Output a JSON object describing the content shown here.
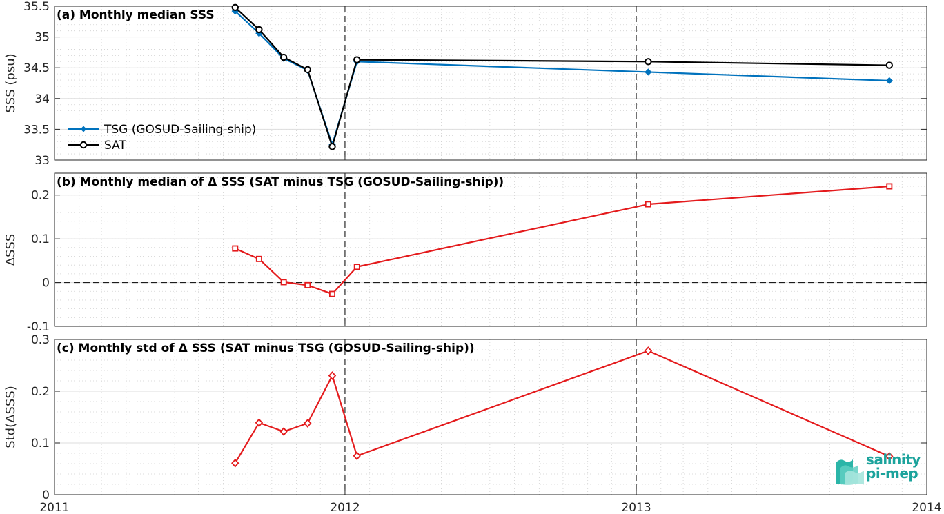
{
  "chart_data": [
    {
      "type": "line",
      "title": "(a) Monthly median SSS",
      "ylabel": "SSS (psu)",
      "xlim": [
        "2011-01-01",
        "2014-01-01"
      ],
      "ylim": [
        33,
        35.5
      ],
      "yticks": [
        33,
        33.5,
        34,
        34.5,
        35,
        35.5
      ],
      "ytick_labels": [
        "33",
        "33.5",
        "34",
        "34.5",
        "35",
        "35.5"
      ],
      "grid": true,
      "legend_position": "lower-left",
      "x": [
        "2011-08-16",
        "2011-09-15",
        "2011-10-16",
        "2011-11-15",
        "2011-12-16",
        "2012-01-16",
        "2013-01-16",
        "2013-11-15"
      ],
      "series": [
        {
          "name": "TSG (GOSUD-Sailing-ship)",
          "color": "#0072bd",
          "marker": "filled-diamond",
          "values": [
            35.42,
            35.06,
            34.65,
            34.46,
            33.25,
            34.6,
            34.43,
            34.29
          ]
        },
        {
          "name": "SAT",
          "color": "#000000",
          "marker": "open-circle",
          "values": [
            35.48,
            35.12,
            34.67,
            34.47,
            33.22,
            34.63,
            34.6,
            34.54
          ]
        }
      ]
    },
    {
      "type": "line",
      "title": "(b) Monthly median of Δ SSS (SAT minus TSG (GOSUD-Sailing-ship))",
      "ylabel": "ΔSSS",
      "xlim": [
        "2011-01-01",
        "2014-01-01"
      ],
      "ylim": [
        -0.1,
        0.25
      ],
      "yticks": [
        -0.1,
        0,
        0.1,
        0.2
      ],
      "ytick_labels": [
        "-0.1",
        "0",
        "0.1",
        "0.2"
      ],
      "grid": true,
      "x": [
        "2011-08-16",
        "2011-09-15",
        "2011-10-16",
        "2011-11-15",
        "2011-12-16",
        "2012-01-16",
        "2013-01-16",
        "2013-11-15"
      ],
      "series": [
        {
          "color": "#e41a1c",
          "marker": "open-square",
          "values": [
            0.078,
            0.054,
            0.001,
            -0.006,
            -0.026,
            0.036,
            0.179,
            0.22
          ]
        }
      ]
    },
    {
      "type": "line",
      "title": "(c) Monthly std of Δ SSS (SAT minus TSG (GOSUD-Sailing-ship))",
      "ylabel": "Std(ΔSSS)",
      "xlim": [
        "2011-01-01",
        "2014-01-01"
      ],
      "ylim": [
        0,
        0.3
      ],
      "yticks": [
        0,
        0.1,
        0.2,
        0.3
      ],
      "ytick_labels": [
        "0",
        "0.1",
        "0.2",
        "0.3"
      ],
      "xticks": [
        "2011-01-01",
        "2012-01-01",
        "2013-01-01",
        "2014-01-01"
      ],
      "xtick_labels": [
        "2011",
        "2012",
        "2013",
        "2014"
      ],
      "grid": true,
      "x": [
        "2011-08-16",
        "2011-09-15",
        "2011-10-16",
        "2011-11-15",
        "2011-12-16",
        "2012-01-16",
        "2013-01-16",
        "2013-11-15"
      ],
      "series": [
        {
          "color": "#e41a1c",
          "marker": "open-diamond",
          "values": [
            0.061,
            0.139,
            0.122,
            0.138,
            0.23,
            0.075,
            0.278,
            0.074
          ]
        }
      ]
    }
  ],
  "logo": {
    "line1": "salinity",
    "line2": "pi-mep"
  }
}
